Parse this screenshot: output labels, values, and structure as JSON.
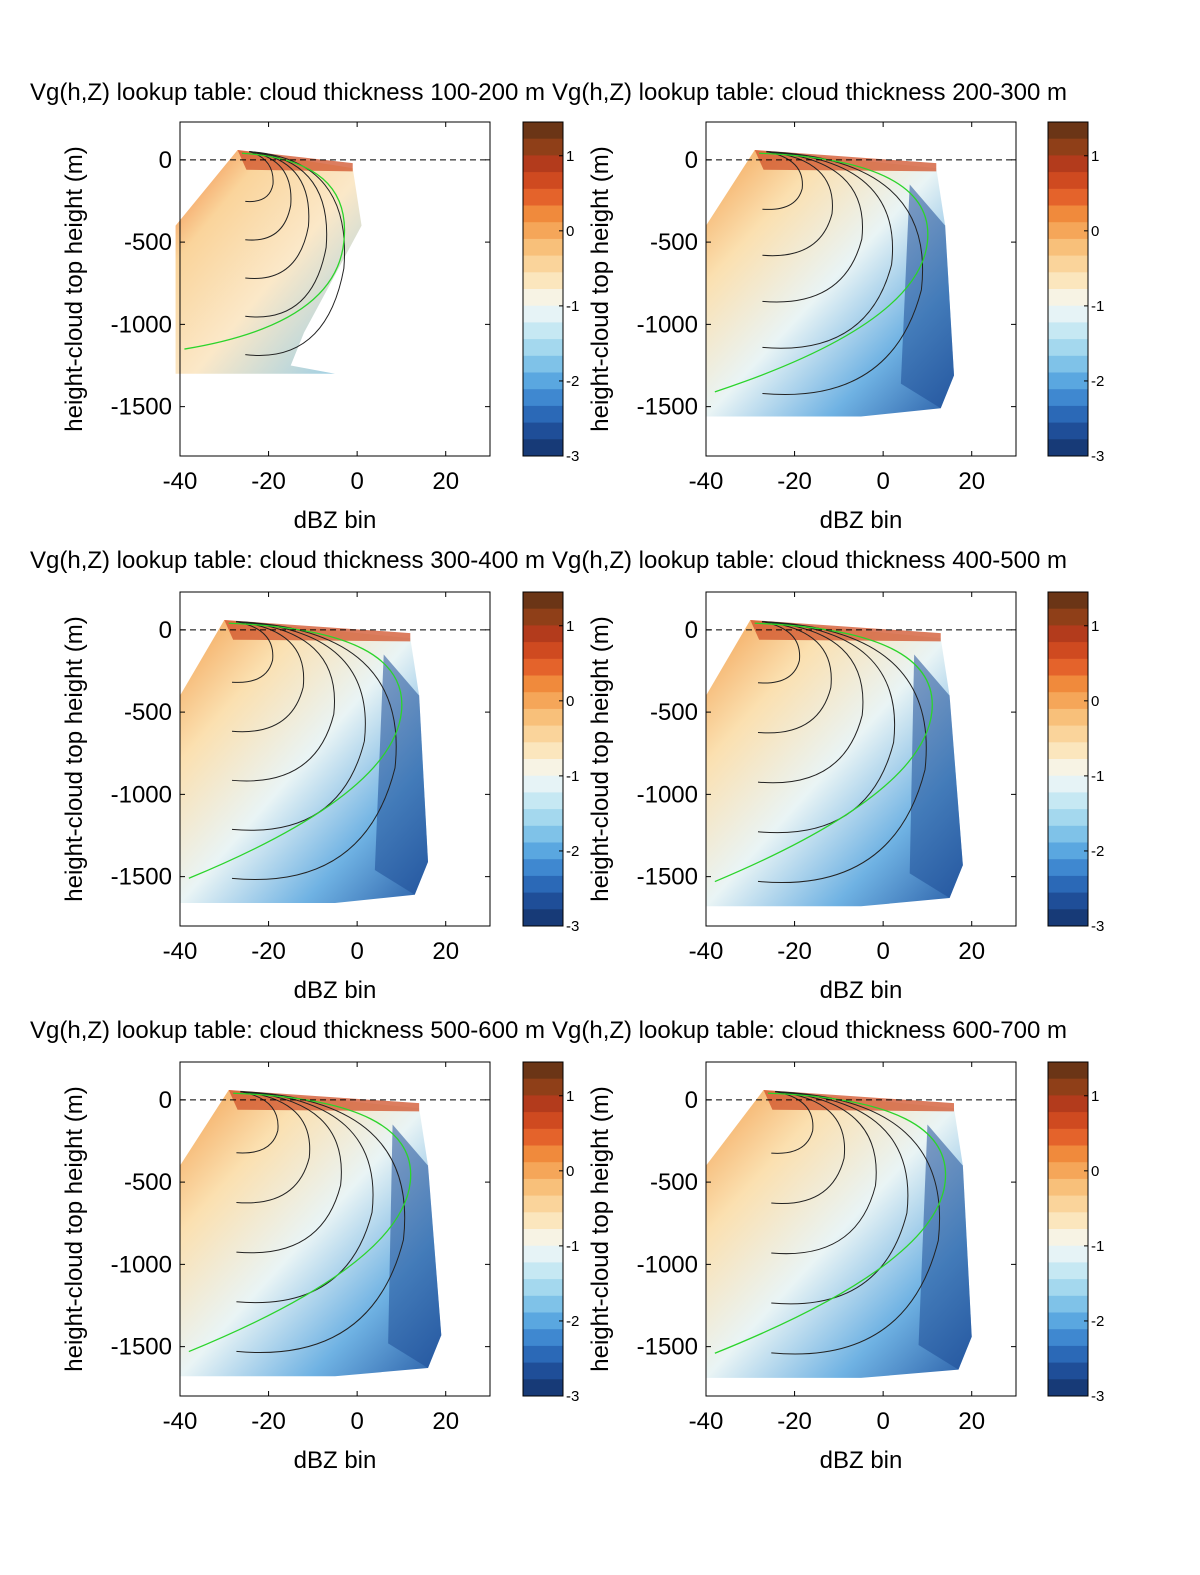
{
  "figure": {
    "colorbar": {
      "min": -3,
      "max": 1.45,
      "ticks": [
        "1",
        "0",
        "-1",
        "-2",
        "-3"
      ],
      "tick_values": [
        1,
        0,
        -1,
        -2,
        -3
      ],
      "palette_top_to_bottom": [
        "#6b3516",
        "#8f3f18",
        "#b33b1c",
        "#cf4a20",
        "#e4632b",
        "#f08a3c",
        "#f5a659",
        "#f8c07a",
        "#fad49b",
        "#fbe6bd",
        "#f7f3e4",
        "#e6f3f6",
        "#c6e8f3",
        "#a4d8ee",
        "#7fc2e8",
        "#5aa7e0",
        "#3f88d0",
        "#2b69b7",
        "#1f4e98",
        "#173a77"
      ]
    },
    "contour_colors": {
      "primary": "#222222",
      "highlight": "#2bd42b",
      "zero_line": "#000000"
    }
  },
  "chart_data": [
    {
      "type": "heatmap",
      "title": "Vg(h,Z) lookup table: cloud thickness 100-200 m",
      "xlabel": "dBZ bin",
      "ylabel": "height-cloud top height (m)",
      "xlim": [
        -40,
        30
      ],
      "ylim": [
        -1800,
        230
      ],
      "xticks": [
        -40,
        -20,
        0,
        20
      ],
      "yticks": [
        0,
        -500,
        -1000,
        -1500
      ],
      "reference_line_y": 0,
      "data_region": {
        "top_left_x": -27,
        "bottom_left_x": -41,
        "right_x_top": -1,
        "right_x_bottom": -12,
        "bottom_y": -1300
      }
    },
    {
      "type": "heatmap",
      "title": "Vg(h,Z) lookup table: cloud thickness 200-300 m",
      "xlabel": "dBZ bin",
      "ylabel": "height-cloud top height (m)",
      "xlim": [
        -40,
        30
      ],
      "ylim": [
        -1800,
        230
      ],
      "xticks": [
        -40,
        -20,
        0,
        20
      ],
      "yticks": [
        0,
        -500,
        -1000,
        -1500
      ],
      "reference_line_y": 0,
      "data_region": {
        "top_left_x": -29,
        "bottom_left_x": -40,
        "right_x_top": 12,
        "right_x_bottom": 16,
        "bottom_y": -1560
      }
    },
    {
      "type": "heatmap",
      "title": "Vg(h,Z) lookup table: cloud thickness 300-400 m",
      "xlabel": "dBZ bin",
      "ylabel": "height-cloud top height (m)",
      "xlim": [
        -40,
        30
      ],
      "ylim": [
        -1800,
        230
      ],
      "xticks": [
        -40,
        -20,
        0,
        20
      ],
      "yticks": [
        0,
        -500,
        -1000,
        -1500
      ],
      "reference_line_y": 0,
      "data_region": {
        "top_left_x": -30,
        "bottom_left_x": -40,
        "right_x_top": 12,
        "right_x_bottom": 16,
        "bottom_y": -1660
      }
    },
    {
      "type": "heatmap",
      "title": "Vg(h,Z) lookup table: cloud thickness 400-500 m",
      "xlabel": "dBZ bin",
      "ylabel": "height-cloud top height (m)",
      "xlim": [
        -40,
        30
      ],
      "ylim": [
        -1800,
        230
      ],
      "xticks": [
        -40,
        -20,
        0,
        20
      ],
      "yticks": [
        0,
        -500,
        -1000,
        -1500
      ],
      "reference_line_y": 0,
      "data_region": {
        "top_left_x": -30,
        "bottom_left_x": -40,
        "right_x_top": 13,
        "right_x_bottom": 18,
        "bottom_y": -1680
      }
    },
    {
      "type": "heatmap",
      "title": "Vg(h,Z) lookup table: cloud thickness 500-600 m",
      "xlabel": "dBZ bin",
      "ylabel": "height-cloud top height (m)",
      "xlim": [
        -40,
        30
      ],
      "ylim": [
        -1800,
        230
      ],
      "xticks": [
        -40,
        -20,
        0,
        20
      ],
      "yticks": [
        0,
        -500,
        -1000,
        -1500
      ],
      "reference_line_y": 0,
      "data_region": {
        "top_left_x": -29,
        "bottom_left_x": -40,
        "right_x_top": 14,
        "right_x_bottom": 19,
        "bottom_y": -1680
      }
    },
    {
      "type": "heatmap",
      "title": "Vg(h,Z) lookup table: cloud thickness 600-700 m",
      "xlabel": "dBZ bin",
      "ylabel": "height-cloud top height (m)",
      "xlim": [
        -40,
        30
      ],
      "ylim": [
        -1800,
        230
      ],
      "xticks": [
        -40,
        -20,
        0,
        20
      ],
      "yticks": [
        0,
        -500,
        -1000,
        -1500
      ],
      "reference_line_y": 0,
      "data_region": {
        "top_left_x": -27,
        "bottom_left_x": -40,
        "right_x_top": 16,
        "right_x_bottom": 20,
        "bottom_y": -1690
      }
    }
  ]
}
